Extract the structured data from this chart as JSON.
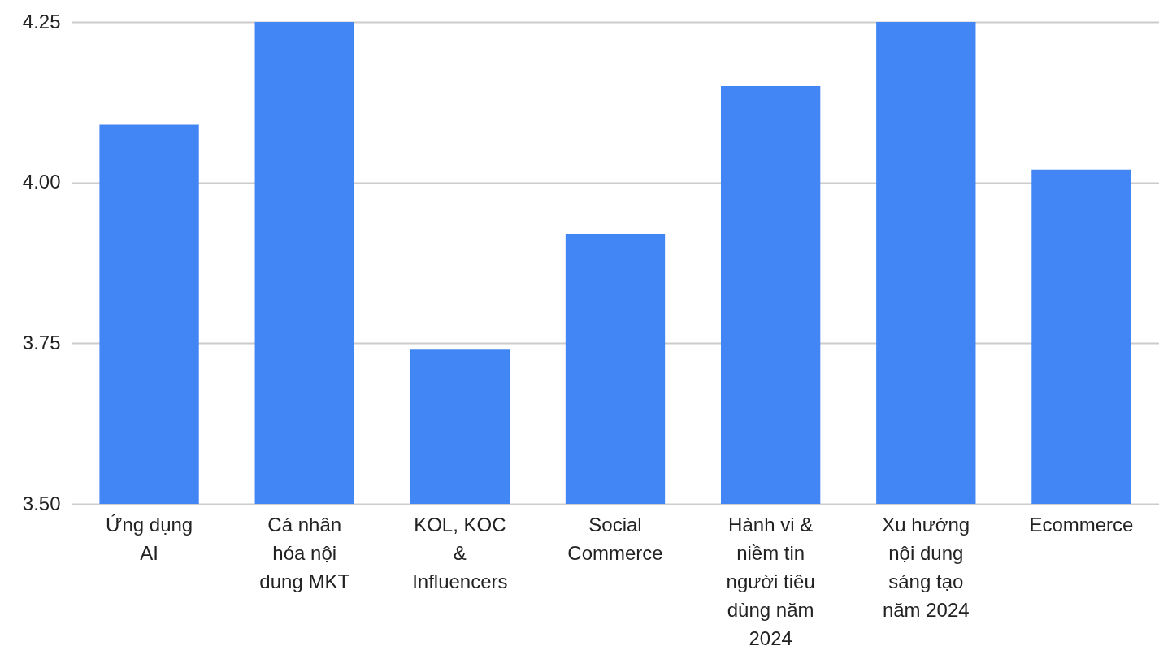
{
  "chart_data": {
    "type": "bar",
    "categories": [
      "Ứng dụng AI",
      "Cá nhân hóa nội dung MKT",
      "KOL, KOC & Influencers",
      "Social Commerce",
      "Hành vi & niềm tin người tiêu dùng năm 2024",
      "Xu hướng nội dung sáng tạo năm 2024",
      "Ecommerce"
    ],
    "values": [
      4.09,
      4.25,
      3.74,
      3.92,
      4.15,
      4.25,
      4.02
    ],
    "color": "#4285f4",
    "ylim": [
      3.5,
      4.25
    ],
    "yticks": [
      {
        "value": 3.5,
        "label": "3.50"
      },
      {
        "value": 3.75,
        "label": "3.75"
      },
      {
        "value": 4,
        "label": "4.00"
      },
      {
        "value": 4.25,
        "label": "4.25"
      }
    ],
    "grid": "y"
  }
}
